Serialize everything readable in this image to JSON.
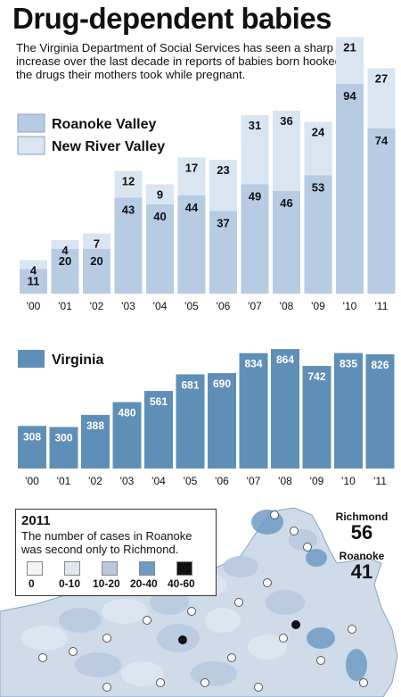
{
  "title": "Drug-dependent babies",
  "intro": "The Virginia Department of Social Services has seen a sharp increase over the last decade in reports of babies born hooked on the drugs their mothers took while pregnant.",
  "colors": {
    "roanoke": "#b7cbe3",
    "newriver": "#d9e6f2",
    "virginia": "#5f8fb7",
    "map_bg": "#f4f6f9"
  },
  "chart_data": [
    {
      "type": "bar",
      "stacked": true,
      "categories": [
        "'00",
        "'01",
        "'02",
        "'03",
        "'04",
        "'05",
        "'06",
        "'07",
        "'08",
        "'09",
        "'10",
        "'11"
      ],
      "series": [
        {
          "name": "Roanoke Valley",
          "values": [
            11,
            20,
            20,
            43,
            40,
            44,
            37,
            49,
            46,
            53,
            94,
            74
          ]
        },
        {
          "name": "New River Valley",
          "values": [
            4,
            4,
            7,
            12,
            9,
            17,
            23,
            31,
            36,
            24,
            21,
            27
          ]
        }
      ],
      "legend": "top-left"
    },
    {
      "type": "bar",
      "categories": [
        "'00",
        "'01",
        "'02",
        "'03",
        "'04",
        "'05",
        "'06",
        "'07",
        "'08",
        "'09",
        "'10",
        "'11"
      ],
      "series": [
        {
          "name": "Virginia",
          "values": [
            308,
            300,
            388,
            480,
            561,
            681,
            690,
            834,
            864,
            742,
            835,
            826
          ]
        }
      ],
      "legend": "top-left"
    }
  ],
  "map": {
    "year": "2011",
    "note": "The number of cases in Roanoke was second only to Richmond.",
    "scale_labels": [
      "0",
      "0-10",
      "10-20",
      "20-40",
      "40-60"
    ],
    "scale_colors": [
      "#f3f3f3",
      "#dfe7f0",
      "#b8c9de",
      "#6f9bc4",
      "#111111"
    ],
    "callouts": [
      {
        "label": "Richmond",
        "value": "56"
      },
      {
        "label": "Roanoke",
        "value": "41"
      }
    ]
  }
}
